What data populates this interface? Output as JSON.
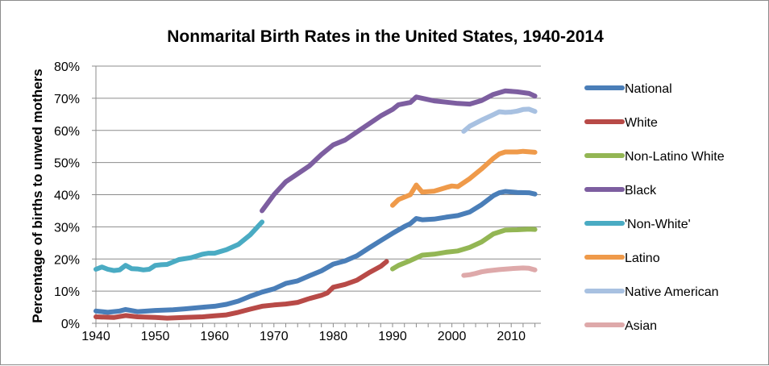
{
  "chart_data": {
    "type": "line",
    "title": "Nonmarital Birth Rates in the United States, 1940-2014",
    "xlabel": "",
    "ylabel": "Percentage of births to unwed mothers",
    "xlim": [
      1940,
      2015
    ],
    "ylim": [
      0,
      80
    ],
    "x_ticks": [
      1940,
      1950,
      1960,
      1970,
      1980,
      1990,
      2000,
      2010
    ],
    "x_tick_labels": [
      "1940",
      "1950",
      "1960",
      "1970",
      "1980",
      "1990",
      "2000",
      "2010"
    ],
    "y_ticks": [
      0,
      10,
      20,
      30,
      40,
      50,
      60,
      70,
      80
    ],
    "y_tick_labels": [
      "0%",
      "10%",
      "20%",
      "30%",
      "40%",
      "50%",
      "60%",
      "70%",
      "80%"
    ],
    "grid": "horizontal",
    "legend": "right",
    "series": [
      {
        "name": "National",
        "color": "#4a7eb8",
        "points": [
          [
            1940,
            3.8
          ],
          [
            1942,
            3.4
          ],
          [
            1944,
            3.8
          ],
          [
            1945,
            4.3
          ],
          [
            1947,
            3.6
          ],
          [
            1950,
            4.0
          ],
          [
            1953,
            4.2
          ],
          [
            1955,
            4.5
          ],
          [
            1958,
            5.0
          ],
          [
            1960,
            5.3
          ],
          [
            1962,
            5.9
          ],
          [
            1964,
            6.9
          ],
          [
            1966,
            8.4
          ],
          [
            1968,
            9.7
          ],
          [
            1970,
            10.7
          ],
          [
            1972,
            12.4
          ],
          [
            1974,
            13.2
          ],
          [
            1976,
            14.8
          ],
          [
            1978,
            16.3
          ],
          [
            1980,
            18.4
          ],
          [
            1982,
            19.4
          ],
          [
            1984,
            21.0
          ],
          [
            1986,
            23.4
          ],
          [
            1988,
            25.7
          ],
          [
            1990,
            28.0
          ],
          [
            1992,
            30.1
          ],
          [
            1993,
            31.0
          ],
          [
            1994,
            32.6
          ],
          [
            1995,
            32.2
          ],
          [
            1997,
            32.4
          ],
          [
            1999,
            33.0
          ],
          [
            2001,
            33.5
          ],
          [
            2003,
            34.6
          ],
          [
            2005,
            36.9
          ],
          [
            2007,
            39.7
          ],
          [
            2008,
            40.6
          ],
          [
            2009,
            41.0
          ],
          [
            2011,
            40.7
          ],
          [
            2013,
            40.6
          ],
          [
            2014,
            40.2
          ]
        ]
      },
      {
        "name": "White",
        "color": "#b84a47",
        "points": [
          [
            1940,
            2.0
          ],
          [
            1943,
            1.8
          ],
          [
            1945,
            2.4
          ],
          [
            1947,
            2.0
          ],
          [
            1950,
            1.8
          ],
          [
            1952,
            1.6
          ],
          [
            1955,
            1.8
          ],
          [
            1958,
            2.0
          ],
          [
            1960,
            2.3
          ],
          [
            1962,
            2.6
          ],
          [
            1964,
            3.4
          ],
          [
            1966,
            4.4
          ],
          [
            1968,
            5.3
          ],
          [
            1970,
            5.7
          ],
          [
            1972,
            6.0
          ],
          [
            1974,
            6.5
          ],
          [
            1976,
            7.7
          ],
          [
            1978,
            8.7
          ],
          [
            1979,
            9.4
          ],
          [
            1980,
            11.2
          ],
          [
            1982,
            12.1
          ],
          [
            1984,
            13.4
          ],
          [
            1986,
            15.7
          ],
          [
            1988,
            17.7
          ],
          [
            1989,
            19.2
          ]
        ]
      },
      {
        "name": "Non-Latino White",
        "color": "#93b654",
        "points": [
          [
            1990,
            16.9
          ],
          [
            1991,
            18.0
          ],
          [
            1993,
            19.5
          ],
          [
            1995,
            21.2
          ],
          [
            1997,
            21.5
          ],
          [
            1999,
            22.1
          ],
          [
            2001,
            22.5
          ],
          [
            2003,
            23.6
          ],
          [
            2005,
            25.3
          ],
          [
            2007,
            27.8
          ],
          [
            2009,
            29.0
          ],
          [
            2011,
            29.1
          ],
          [
            2013,
            29.3
          ],
          [
            2014,
            29.2
          ]
        ]
      },
      {
        "name": "Black",
        "color": "#7d5ea0",
        "points": [
          [
            1968,
            35.0
          ],
          [
            1970,
            40.0
          ],
          [
            1972,
            44.0
          ],
          [
            1974,
            46.5
          ],
          [
            1976,
            49.0
          ],
          [
            1978,
            52.5
          ],
          [
            1980,
            55.5
          ],
          [
            1982,
            57.0
          ],
          [
            1984,
            59.5
          ],
          [
            1986,
            62.0
          ],
          [
            1988,
            64.5
          ],
          [
            1990,
            66.5
          ],
          [
            1991,
            68.0
          ],
          [
            1993,
            68.7
          ],
          [
            1994,
            70.4
          ],
          [
            1995,
            70.0
          ],
          [
            1997,
            69.2
          ],
          [
            1999,
            68.8
          ],
          [
            2001,
            68.4
          ],
          [
            2003,
            68.2
          ],
          [
            2005,
            69.3
          ],
          [
            2007,
            71.2
          ],
          [
            2009,
            72.3
          ],
          [
            2011,
            72.0
          ],
          [
            2013,
            71.5
          ],
          [
            2014,
            70.7
          ]
        ]
      },
      {
        "name": "'Non-White'",
        "color": "#4aabc3",
        "points": [
          [
            1940,
            16.8
          ],
          [
            1941,
            17.5
          ],
          [
            1942,
            16.8
          ],
          [
            1943,
            16.4
          ],
          [
            1944,
            16.6
          ],
          [
            1945,
            18.0
          ],
          [
            1946,
            17.0
          ],
          [
            1947,
            16.9
          ],
          [
            1948,
            16.6
          ],
          [
            1949,
            16.8
          ],
          [
            1950,
            18.0
          ],
          [
            1951,
            18.2
          ],
          [
            1952,
            18.3
          ],
          [
            1954,
            19.8
          ],
          [
            1956,
            20.4
          ],
          [
            1958,
            21.5
          ],
          [
            1959,
            21.8
          ],
          [
            1960,
            21.8
          ],
          [
            1962,
            22.9
          ],
          [
            1964,
            24.5
          ],
          [
            1966,
            27.5
          ],
          [
            1968,
            31.5
          ]
        ]
      },
      {
        "name": "Latino",
        "color": "#ef9a4a",
        "points": [
          [
            1990,
            36.7
          ],
          [
            1991,
            38.5
          ],
          [
            1993,
            40.0
          ],
          [
            1994,
            43.0
          ],
          [
            1995,
            40.8
          ],
          [
            1997,
            41.1
          ],
          [
            1999,
            42.2
          ],
          [
            2000,
            42.7
          ],
          [
            2001,
            42.5
          ],
          [
            2003,
            45.0
          ],
          [
            2005,
            48.0
          ],
          [
            2007,
            51.3
          ],
          [
            2008,
            52.7
          ],
          [
            2009,
            53.3
          ],
          [
            2011,
            53.3
          ],
          [
            2012,
            53.5
          ],
          [
            2014,
            53.2
          ]
        ]
      },
      {
        "name": "Native American",
        "color": "#a8c1e1",
        "points": [
          [
            2002,
            59.7
          ],
          [
            2003,
            61.3
          ],
          [
            2005,
            63.2
          ],
          [
            2007,
            64.9
          ],
          [
            2008,
            65.8
          ],
          [
            2009,
            65.6
          ],
          [
            2010,
            65.7
          ],
          [
            2011,
            66.0
          ],
          [
            2012,
            66.5
          ],
          [
            2013,
            66.6
          ],
          [
            2014,
            65.9
          ]
        ]
      },
      {
        "name": "Asian",
        "color": "#dea9aa",
        "points": [
          [
            2002,
            14.9
          ],
          [
            2003,
            15.1
          ],
          [
            2004,
            15.5
          ],
          [
            2005,
            16.0
          ],
          [
            2006,
            16.3
          ],
          [
            2008,
            16.7
          ],
          [
            2010,
            17.0
          ],
          [
            2012,
            17.2
          ],
          [
            2013,
            17.1
          ],
          [
            2014,
            16.6
          ]
        ]
      }
    ]
  }
}
